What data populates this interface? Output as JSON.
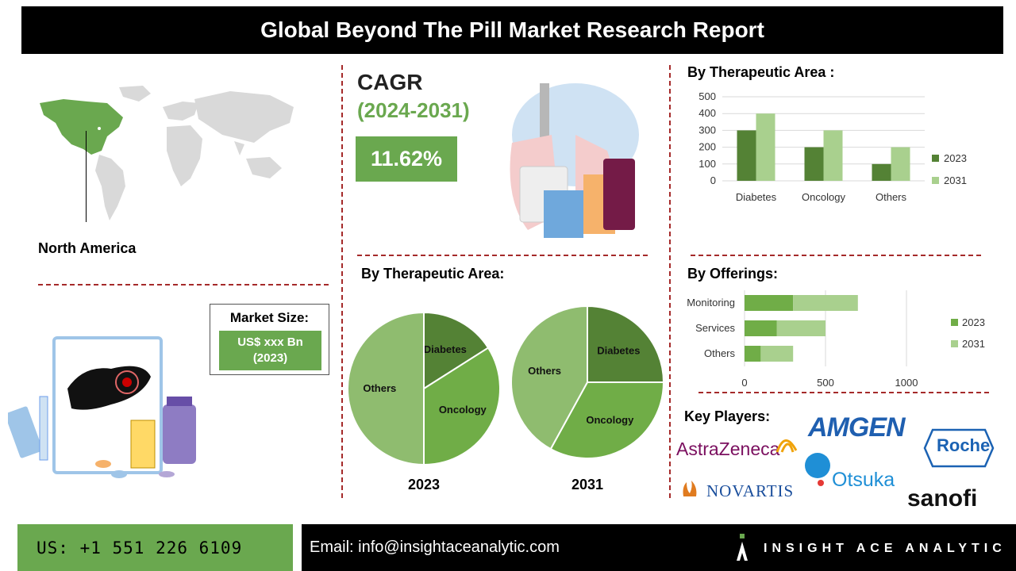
{
  "title": "Global Beyond The Pill Market Research Report",
  "cagr": {
    "label": "CAGR",
    "years": "(2024-2031)",
    "value": "11.62%"
  },
  "region": "North America",
  "market_size": {
    "title": "Market Size:",
    "value_line1": "US$ xxx Bn",
    "value_line2": "(2023)"
  },
  "sections": {
    "pie_title": "By Therapeutic Area:",
    "bar_title": "By Therapeutic Area :",
    "offerings_title": "By Offerings:",
    "key_players_title": "Key Players:"
  },
  "key_players": [
    "AstraZeneca",
    "AMGEN",
    "Roche",
    "NOVARTIS",
    "Otsuka",
    "sanofi"
  ],
  "footer": {
    "phone": "US: +1 551 226 6109",
    "email": "Email: info@insightaceanalytic.com",
    "brand": "INSIGHT ACE ANALYTIC"
  },
  "colors": {
    "dark_green": "#548235",
    "light_green": "#a9d08e",
    "mid_green": "#70ad47",
    "pie_light": "#8fbc6f",
    "accent": "#6aa84f"
  },
  "chart_data": [
    {
      "type": "bar",
      "title": "By Therapeutic Area :",
      "categories": [
        "Diabetes",
        "Oncology",
        "Others"
      ],
      "series": [
        {
          "name": "2023",
          "values": [
            300,
            200,
            100
          ]
        },
        {
          "name": "2031",
          "values": [
            400,
            300,
            200
          ]
        }
      ],
      "ylim": [
        0,
        500
      ],
      "yticks": [
        0,
        100,
        200,
        300,
        400,
        500
      ],
      "grid": true,
      "legend": "right"
    },
    {
      "type": "bar",
      "orientation": "horizontal",
      "stacked": true,
      "title": "By Offerings:",
      "categories": [
        "Monitoring",
        "Services",
        "Others"
      ],
      "series": [
        {
          "name": "2023",
          "values": [
            300,
            200,
            100
          ]
        },
        {
          "name": "2031",
          "values": [
            400,
            300,
            200
          ]
        }
      ],
      "xlim": [
        0,
        1000
      ],
      "xticks": [
        0,
        500,
        1000
      ],
      "grid": true,
      "legend": "right"
    },
    {
      "type": "pie",
      "title": "By Therapeutic Area:",
      "label": "2023",
      "slices": [
        {
          "name": "Diabetes",
          "value": 16
        },
        {
          "name": "Oncology",
          "value": 34
        },
        {
          "name": "Others",
          "value": 50
        }
      ]
    },
    {
      "type": "pie",
      "label": "2031",
      "slices": [
        {
          "name": "Diabetes",
          "value": 25
        },
        {
          "name": "Oncology",
          "value": 33
        },
        {
          "name": "Others",
          "value": 42
        }
      ]
    }
  ]
}
